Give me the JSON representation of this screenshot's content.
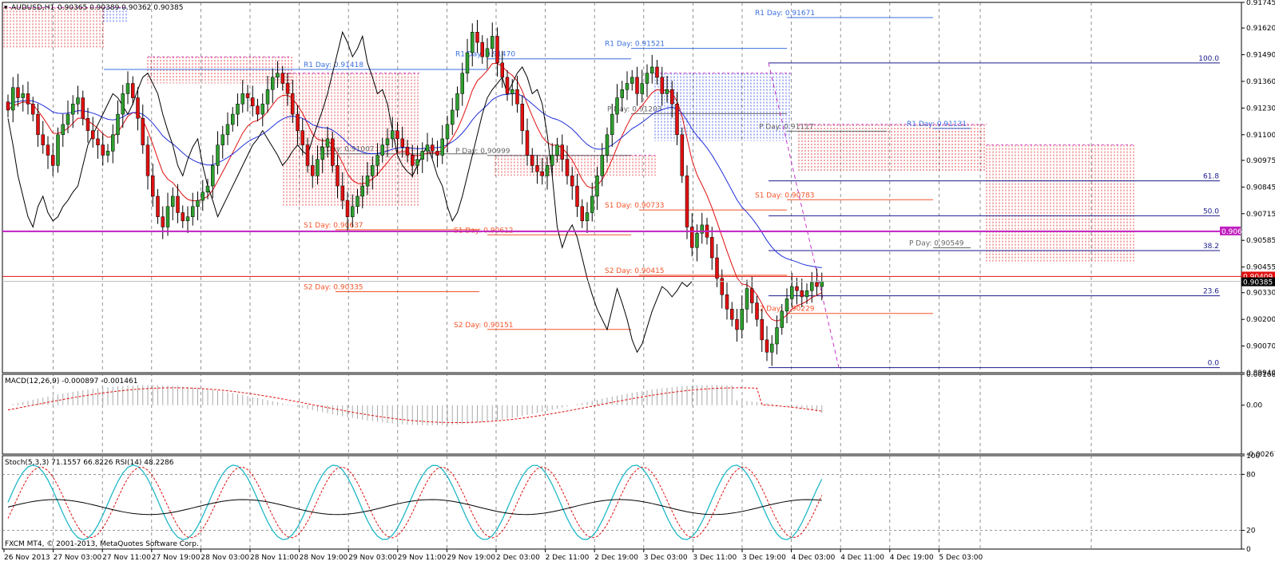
{
  "header": {
    "symbol_label": "AUDUSD,H1",
    "ohlc": "0.90365 0.90389 0.90362 0.90385"
  },
  "footer": {
    "copyright": "FXCM MT4, © 2001-2013, MetaQuotes Software Corp."
  },
  "colors": {
    "bull": "#2e9e2e",
    "bear": "#e01010",
    "blue": "#1f2fd8",
    "pivot_red": "#f2552a",
    "pivot_blue": "#3a6fdc",
    "magenta": "#c020c0",
    "fib": "#1a1a8c",
    "cloud": "#e02020",
    "cloud_blue": "#2040e0",
    "bid": "#e01010"
  },
  "chart_data": [
    {
      "type": "candlestick",
      "panel": "main",
      "symbol": "AUDUSD",
      "timeframe": "H1",
      "ylim": [
        0.8994,
        0.91745
      ],
      "y_ticks": [
        "0.91745",
        "0.91620",
        "0.91490",
        "0.91360",
        "0.91230",
        "0.91100",
        "0.90975",
        "0.90845",
        "0.90715",
        "0.90585",
        "0.90455",
        "0.90330",
        "0.90200",
        "0.90070",
        "0.89940"
      ],
      "x_tick_labels": [
        "26 Nov 2013",
        "27 Nov 03:00",
        "27 Nov 11:00",
        "27 Nov 19:00",
        "28 Nov 03:00",
        "28 Nov 11:00",
        "28 Nov 19:00",
        "29 Nov 03:00",
        "29 Nov 11:00",
        "29 Nov 19:00",
        "2 Dec 03:00",
        "2 Dec 11:00",
        "2 Dec 19:00",
        "3 Dec 03:00",
        "3 Dec 11:00",
        "3 Dec 19:00",
        "4 Dec 03:00",
        "4 Dec 11:00",
        "4 Dec 19:00",
        "5 Dec 03:00"
      ],
      "current_price": "0.90385",
      "bid_price": "0.90409",
      "horizontal_line": {
        "value": 0.90629,
        "label": "0.90629"
      },
      "candle_closes": [
        0.9122,
        0.9133,
        0.9128,
        0.913,
        0.9125,
        0.912,
        0.911,
        0.9105,
        0.91,
        0.9095,
        0.911,
        0.9115,
        0.912,
        0.9125,
        0.9128,
        0.9118,
        0.9112,
        0.9108,
        0.9105,
        0.91,
        0.9102,
        0.911,
        0.912,
        0.913,
        0.9135,
        0.9128,
        0.9118,
        0.9105,
        0.909,
        0.908,
        0.907,
        0.9065,
        0.9075,
        0.908,
        0.9072,
        0.9068,
        0.907,
        0.9075,
        0.9078,
        0.9082,
        0.9085,
        0.9095,
        0.9105,
        0.911,
        0.9115,
        0.912,
        0.9125,
        0.913,
        0.9128,
        0.9124,
        0.912,
        0.9125,
        0.9132,
        0.9138,
        0.914,
        0.9135,
        0.913,
        0.912,
        0.9112,
        0.9105,
        0.9095,
        0.909,
        0.9098,
        0.9104,
        0.9108,
        0.9095,
        0.9085,
        0.9078,
        0.907,
        0.9075,
        0.908,
        0.9085,
        0.909,
        0.9095,
        0.91,
        0.9105,
        0.9108,
        0.9112,
        0.9108,
        0.9104,
        0.91,
        0.9095,
        0.9098,
        0.9102,
        0.9105,
        0.9102,
        0.91,
        0.9108,
        0.9115,
        0.9122,
        0.913,
        0.914,
        0.915,
        0.916,
        0.9155,
        0.9148,
        0.9152,
        0.9158,
        0.9145,
        0.9138,
        0.913,
        0.9132,
        0.9125,
        0.9112,
        0.91,
        0.9095,
        0.9092,
        0.909,
        0.9095,
        0.91,
        0.9105,
        0.9098,
        0.909,
        0.9085,
        0.9075,
        0.9068,
        0.9072,
        0.908,
        0.909,
        0.91,
        0.911,
        0.912,
        0.9128,
        0.9132,
        0.9135,
        0.9138,
        0.913,
        0.9135,
        0.914,
        0.9143,
        0.9138,
        0.913,
        0.9132,
        0.9125,
        0.911,
        0.909,
        0.9065,
        0.9055,
        0.9062,
        0.9066,
        0.906,
        0.905,
        0.904,
        0.9032,
        0.9025,
        0.902,
        0.9015,
        0.9025,
        0.9035,
        0.9028,
        0.902,
        0.901,
        0.9004,
        0.9008,
        0.9016,
        0.9024,
        0.903,
        0.9036,
        0.9034,
        0.9031,
        0.9034,
        0.9038,
        0.9036,
        0.90385
      ]
    },
    {
      "type": "line",
      "panel": "indicator",
      "title": "MACD(12,26,9) -0.000897 -0.001461",
      "ylim": [
        -0.00267,
        0.001687
      ],
      "y_ticks": [
        "0.001687",
        "0.00",
        "-0.00267"
      ]
    },
    {
      "type": "line",
      "panel": "indicator",
      "title": "Stoch(5,3,3) 71.1557 66.8226  RSI(14) 48.2286",
      "ylim": [
        0,
        100
      ],
      "y_ticks": [
        "100",
        "80",
        "20",
        "0"
      ]
    }
  ],
  "pivots": [
    {
      "label": "R1 Day: 0.91418",
      "color": "pivot_blue"
    },
    {
      "label": "R1 Day: 0.91470",
      "color": "pivot_blue"
    },
    {
      "label": "R1 Day: 0.91521",
      "color": "pivot_blue"
    },
    {
      "label": "R1 Day: 0.91671",
      "color": "pivot_blue"
    },
    {
      "label": "R1 Day: 0.91131",
      "color": "pivot_blue"
    },
    {
      "label": "P Day: 0.91203",
      "color": "pivot_gray"
    },
    {
      "label": "P Day: 0.91117",
      "color": "pivot_gray"
    },
    {
      "label": "P Day: 0.91007",
      "color": "pivot_gray"
    },
    {
      "label": "P Day: 0.90999",
      "color": "pivot_gray"
    },
    {
      "label": "P Day: 0.90549",
      "color": "pivot_gray"
    },
    {
      "label": "S1 Day: 0.90637",
      "color": "pivot_red"
    },
    {
      "label": "S1 Day: 0.90612",
      "color": "pivot_red"
    },
    {
      "label": "S1 Day: 0.90733",
      "color": "pivot_red"
    },
    {
      "label": "S1 Day: 0.90783",
      "color": "pivot_red"
    },
    {
      "label": "S2 Day: 0.90335",
      "color": "pivot_red"
    },
    {
      "label": "S2 Day: 0.90151",
      "color": "pivot_red"
    },
    {
      "label": "S2 Day: 0.90415",
      "color": "pivot_red"
    },
    {
      "label": "S2 Day: 0.90229",
      "color": "pivot_red"
    }
  ],
  "fib_levels": [
    {
      "label": "100.0",
      "value": 0.9145
    },
    {
      "label": "61.8",
      "value": 0.90875
    },
    {
      "label": "50.0",
      "value": 0.90705
    },
    {
      "label": "38.2",
      "value": 0.90535
    },
    {
      "label": "23.6",
      "value": 0.90315
    },
    {
      "label": "0.0",
      "value": 0.89965
    }
  ]
}
